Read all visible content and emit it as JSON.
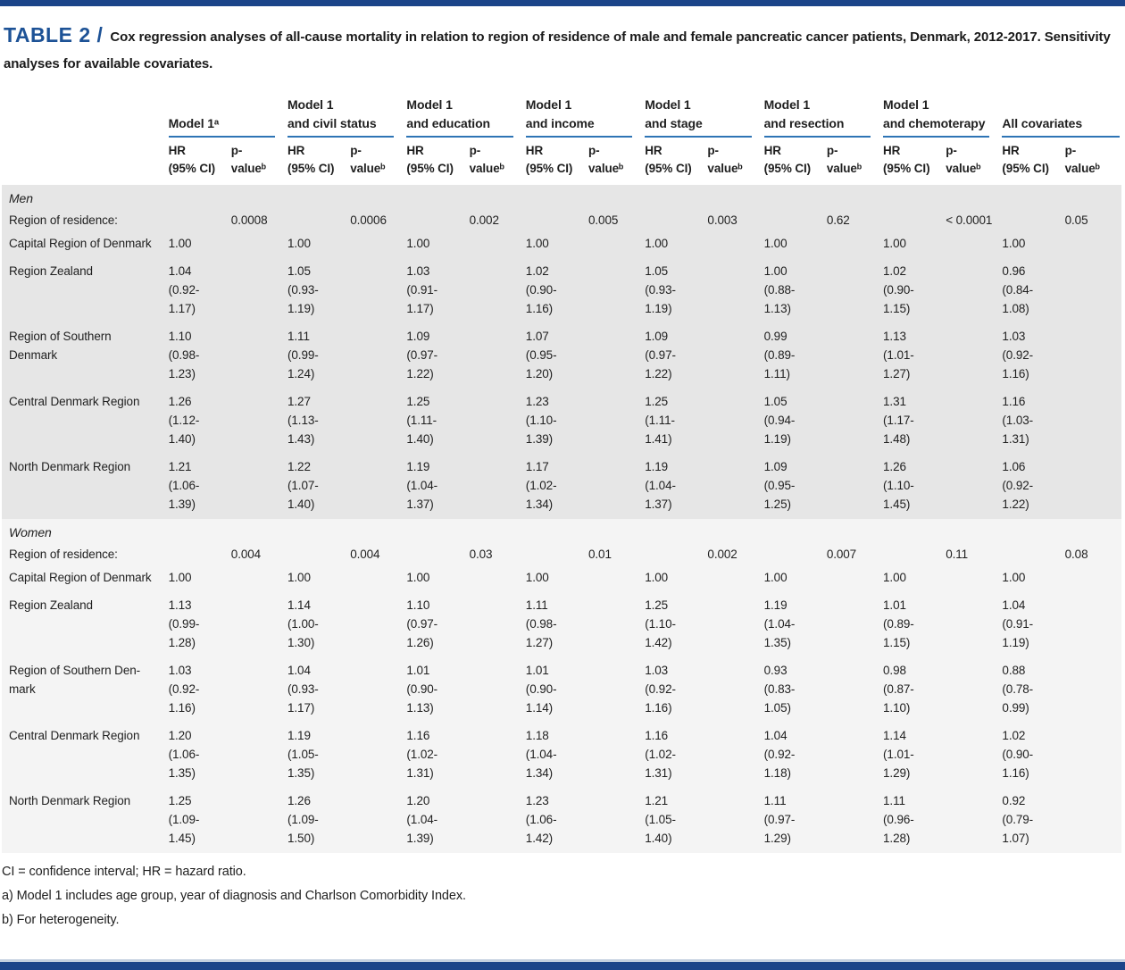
{
  "colors": {
    "navy": "#1b4489",
    "title_blue": "#1d5296",
    "rule_blue": "#2e74b5",
    "band_men": "#e6e6e6",
    "band_women": "#f4f4f4",
    "light_rule": "#c3cfdf"
  },
  "title": {
    "tag": "TABLE 2 /",
    "text": "Cox regression analyses of all-cause mortality in relation to region of residence of male and female pancreatic cancer patients, Denmark, 2012-2017. Sensitivity analyses for available covariates."
  },
  "table": {
    "groups": [
      {
        "title": "Model 1ᵃ"
      },
      {
        "title": "Model 1\nand civil status"
      },
      {
        "title": "Model 1\nand education"
      },
      {
        "title": "Model 1\nand income"
      },
      {
        "title": "Model 1\nand stage"
      },
      {
        "title": "Model 1\nand resection"
      },
      {
        "title": "Model 1\nand chemoterapy"
      },
      {
        "title": "All covariates"
      }
    ],
    "subheader": {
      "hr": "HR\n(95% CI)",
      "p": "p-\nvalueᵇ"
    },
    "sections": [
      {
        "label": "Men",
        "band": "men",
        "region_row": {
          "label": "Region of residence:",
          "p_values": [
            "0.0008",
            "0.0006",
            "0.002",
            "0.005",
            "0.003",
            "0.62",
            "< 0.0001",
            "0.05"
          ]
        },
        "rows": [
          {
            "label": "Capital Region of Denmark",
            "cells": [
              [
                "1.00"
              ],
              [
                "1.00"
              ],
              [
                "1.00"
              ],
              [
                "1.00"
              ],
              [
                "1.00"
              ],
              [
                "1.00"
              ],
              [
                "1.00"
              ],
              [
                "1.00"
              ]
            ]
          },
          {
            "label": "Region Zealand",
            "cells": [
              [
                "1.04",
                "(0.92-",
                "1.17)"
              ],
              [
                "1.05",
                "(0.93-",
                "1.19)"
              ],
              [
                "1.03",
                "(0.91-",
                "1.17)"
              ],
              [
                "1.02",
                "(0.90-",
                "1.16)"
              ],
              [
                "1.05",
                "(0.93-",
                "1.19)"
              ],
              [
                "1.00",
                "(0.88-",
                "1.13)"
              ],
              [
                "1.02",
                "(0.90-",
                "1.15)"
              ],
              [
                "0.96",
                "(0.84-",
                "1.08)"
              ]
            ]
          },
          {
            "label": "Region of Southern\nDenmark",
            "cells": [
              [
                "1.10",
                "(0.98-",
                "1.23)"
              ],
              [
                "1.11",
                "(0.99-",
                "1.24)"
              ],
              [
                "1.09",
                "(0.97-",
                "1.22)"
              ],
              [
                "1.07",
                "(0.95-",
                "1.20)"
              ],
              [
                "1.09",
                "(0.97-",
                "1.22)"
              ],
              [
                "0.99",
                "(0.89-",
                "1.11)"
              ],
              [
                "1.13",
                "(1.01-",
                "1.27)"
              ],
              [
                "1.03",
                "(0.92-",
                "1.16)"
              ]
            ]
          },
          {
            "label": "Central Denmark Region",
            "cells": [
              [
                "1.26",
                "(1.12-",
                "1.40)"
              ],
              [
                "1.27",
                "(1.13-",
                "1.43)"
              ],
              [
                "1.25",
                "(1.11-",
                "1.40)"
              ],
              [
                "1.23",
                "(1.10-",
                "1.39)"
              ],
              [
                "1.25",
                "(1.11-",
                "1.41)"
              ],
              [
                "1.05",
                "(0.94-",
                "1.19)"
              ],
              [
                "1.31",
                "(1.17-",
                "1.48)"
              ],
              [
                "1.16",
                "(1.03-",
                "1.31)"
              ]
            ]
          },
          {
            "label": "North Denmark Region",
            "cells": [
              [
                "1.21",
                "(1.06-",
                "1.39)"
              ],
              [
                "1.22",
                "(1.07-",
                "1.40)"
              ],
              [
                "1.19",
                "(1.04-",
                "1.37)"
              ],
              [
                "1.17",
                "(1.02-",
                "1.34)"
              ],
              [
                "1.19",
                "(1.04-",
                "1.37)"
              ],
              [
                "1.09",
                "(0.95-",
                "1.25)"
              ],
              [
                "1.26",
                "(1.10-",
                "1.45)"
              ],
              [
                "1.06",
                "(0.92-",
                "1.22)"
              ]
            ]
          }
        ]
      },
      {
        "label": "Women",
        "band": "women",
        "region_row": {
          "label": "Region of residence:",
          "p_values": [
            "0.004",
            "0.004",
            "0.03",
            "0.01",
            "0.002",
            "0.007",
            "0.11",
            "0.08"
          ]
        },
        "rows": [
          {
            "label": "Capital Region of Denmark",
            "cells": [
              [
                "1.00"
              ],
              [
                "1.00"
              ],
              [
                "1.00"
              ],
              [
                "1.00"
              ],
              [
                "1.00"
              ],
              [
                "1.00"
              ],
              [
                "1.00"
              ],
              [
                "1.00"
              ]
            ]
          },
          {
            "label": "Region Zealand",
            "cells": [
              [
                "1.13",
                "(0.99-",
                "1.28)"
              ],
              [
                "1.14",
                "(1.00-",
                "1.30)"
              ],
              [
                "1.10",
                "(0.97-",
                "1.26)"
              ],
              [
                "1.11",
                "(0.98-",
                "1.27)"
              ],
              [
                "1.25",
                "(1.10-",
                "1.42)"
              ],
              [
                "1.19",
                "(1.04-",
                "1.35)"
              ],
              [
                "1.01",
                "(0.89-",
                "1.15)"
              ],
              [
                "1.04",
                "(0.91-",
                "1.19)"
              ]
            ]
          },
          {
            "label": "Region of Southern Den-\nmark",
            "cells": [
              [
                "1.03",
                "(0.92-",
                "1.16)"
              ],
              [
                "1.04",
                "(0.93-",
                "1.17)"
              ],
              [
                "1.01",
                "(0.90-",
                "1.13)"
              ],
              [
                "1.01",
                "(0.90-",
                "1.14)"
              ],
              [
                "1.03",
                "(0.92-",
                "1.16)"
              ],
              [
                "0.93",
                "(0.83-",
                "1.05)"
              ],
              [
                "0.98",
                "(0.87-",
                "1.10)"
              ],
              [
                "0.88",
                "(0.78-",
                "0.99)"
              ]
            ]
          },
          {
            "label": "Central Denmark Region",
            "cells": [
              [
                "1.20",
                "(1.06-",
                "1.35)"
              ],
              [
                "1.19",
                "(1.05-",
                "1.35)"
              ],
              [
                "1.16",
                "(1.02-",
                "1.31)"
              ],
              [
                "1.18",
                "(1.04-",
                "1.34)"
              ],
              [
                "1.16",
                "(1.02-",
                "1.31)"
              ],
              [
                "1.04",
                "(0.92-",
                "1.18)"
              ],
              [
                "1.14",
                "(1.01-",
                "1.29)"
              ],
              [
                "1.02",
                "(0.90-",
                "1.16)"
              ]
            ]
          },
          {
            "label": "North Denmark Region",
            "cells": [
              [
                "1.25",
                "(1.09-",
                "1.45)"
              ],
              [
                "1.26",
                "(1.09-",
                "1.50)"
              ],
              [
                "1.20",
                "(1.04-",
                "1.39)"
              ],
              [
                "1.23",
                "(1.06-",
                "1.42)"
              ],
              [
                "1.21",
                "(1.05-",
                "1.40)"
              ],
              [
                "1.11",
                "(0.97-",
                "1.29)"
              ],
              [
                "1.11",
                "(0.96-",
                "1.28)"
              ],
              [
                "0.92",
                "(0.79-",
                "1.07)"
              ]
            ]
          }
        ]
      }
    ]
  },
  "footnotes": [
    "CI = confidence interval; HR = hazard ratio.",
    "a) Model 1 includes age group, year of diagnosis and Charlson Comorbidity Index.",
    "b) For heterogeneity."
  ]
}
